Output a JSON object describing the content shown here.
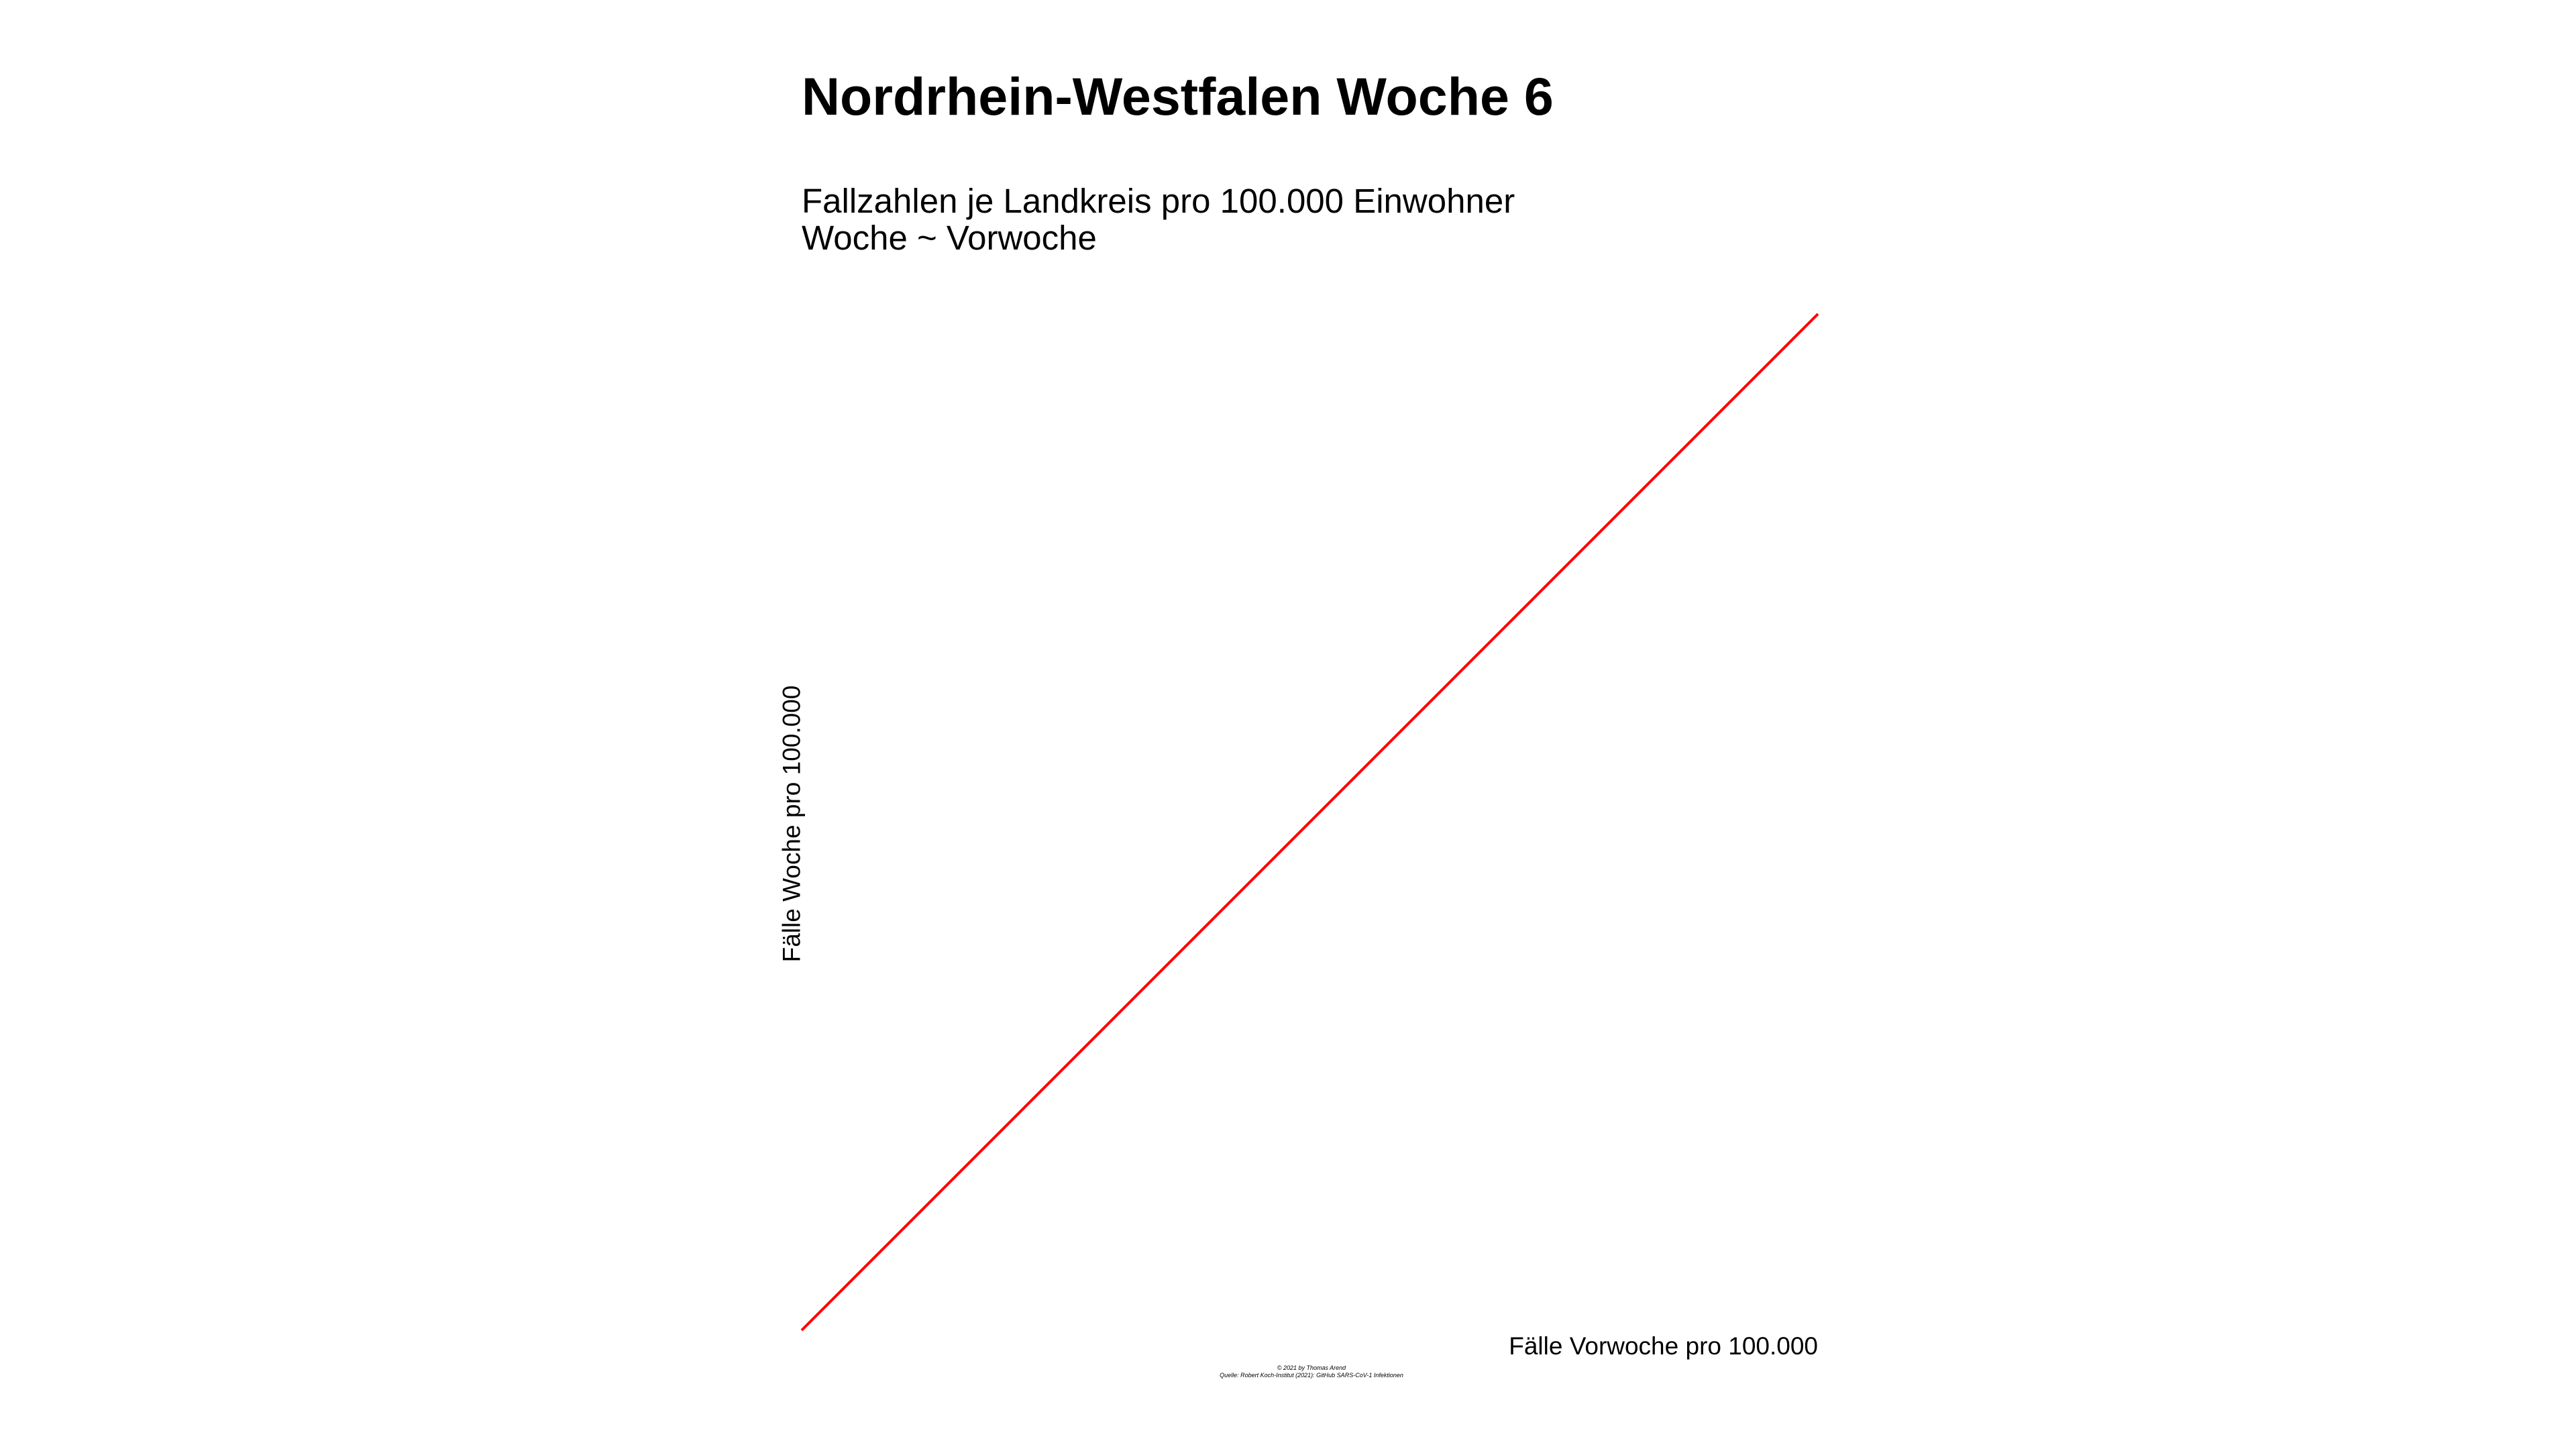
{
  "chart_data": {
    "type": "line",
    "title": "Nordrhein-Westfalen Woche 6",
    "subtitle_lines": [
      "Fallzahlen je Landkreis pro 100.000 Einwohner",
      "Woche ~ Vorwoche"
    ],
    "xlabel": "Fälle Vorwoche pro 100.000",
    "ylabel": "Fälle Woche pro 100.000",
    "series": [
      {
        "x": [
          0,
          1
        ],
        "y": [
          0,
          1
        ],
        "color": "#ff0000"
      }
    ],
    "xlim": [
      0,
      1
    ],
    "ylim": [
      0,
      1
    ],
    "grid": false
  },
  "caption": {
    "line1": "© 2021 by Thomas Arend",
    "line2": "Quelle: Robert Koch-Institut (2021): GitHub SARS-CoV-1 Infektionen"
  }
}
